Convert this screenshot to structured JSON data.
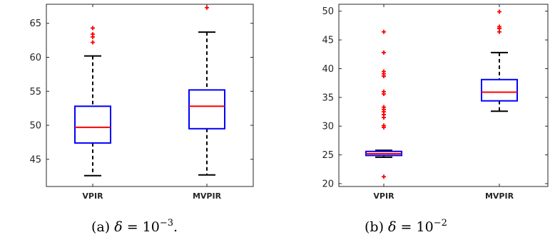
{
  "chart_data": [
    {
      "type": "box",
      "categories": [
        "VPIR",
        "MVPIR"
      ],
      "ylim": [
        41,
        67.8
      ],
      "yticks": [
        "45",
        "50",
        "55",
        "60",
        "65"
      ],
      "colors": {
        "box": "#0000ff",
        "median": "#ff0000",
        "whisker": "#000000",
        "outlier": "#ff0000"
      },
      "boxes": [
        {
          "name": "VPIR",
          "whisker_low": 42.6,
          "q1": 47.4,
          "median": 49.7,
          "q3": 52.8,
          "whisker_high": 60.2,
          "outliers": [
            62.2,
            63.0,
            63.4,
            64.3
          ]
        },
        {
          "name": "MVPIR",
          "whisker_low": 42.7,
          "q1": 49.5,
          "median": 52.8,
          "q3": 55.2,
          "whisker_high": 63.7,
          "outliers": [
            67.3
          ]
        }
      ],
      "caption": {
        "label": "(a)",
        "symbol": "δ",
        "equals": "=",
        "base": "10",
        "exponent": "−3",
        "suffix": "."
      }
    },
    {
      "type": "box",
      "categories": [
        "VPIR",
        "MVPIR"
      ],
      "ylim": [
        19.5,
        51.2
      ],
      "yticks": [
        "20",
        "25",
        "30",
        "35",
        "40",
        "45",
        "50"
      ],
      "colors": {
        "box": "#0000ff",
        "median": "#ff0000",
        "whisker": "#000000",
        "outlier": "#ff0000"
      },
      "boxes": [
        {
          "name": "VPIR",
          "whisker_low": 24.6,
          "q1": 24.9,
          "median": 25.2,
          "q3": 25.6,
          "whisker_high": 25.8,
          "outliers": [
            21.2,
            29.8,
            30.1,
            31.5,
            32.0,
            32.5,
            32.9,
            33.3,
            35.6,
            36.0,
            38.7,
            39.1,
            39.5,
            42.8,
            46.4
          ]
        },
        {
          "name": "MVPIR",
          "whisker_low": 32.6,
          "q1": 34.4,
          "median": 35.9,
          "q3": 38.1,
          "whisker_high": 42.8,
          "outliers": [
            46.4,
            47.0,
            47.3,
            49.9
          ]
        }
      ],
      "caption": {
        "label": "(b)",
        "symbol": "δ",
        "equals": "=",
        "base": "10",
        "exponent": "−2",
        "suffix": ""
      }
    }
  ]
}
